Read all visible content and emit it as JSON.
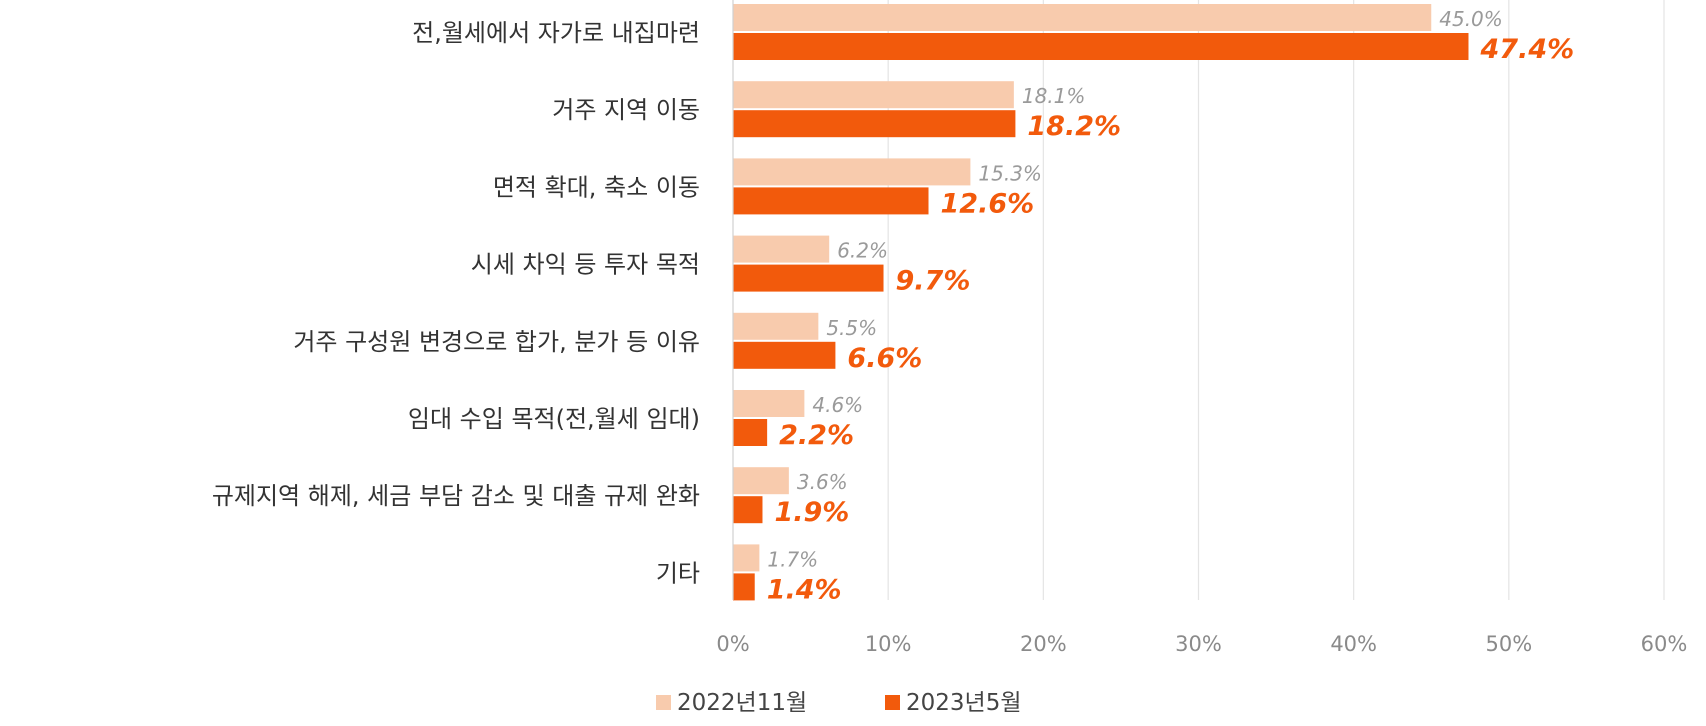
{
  "chart_data": {
    "type": "bar",
    "orientation": "horizontal",
    "categories": [
      "전,월세에서 자가로 내집마련",
      "거주 지역 이동",
      "면적 확대, 축소 이동",
      "시세 차익 등 투자 목적",
      "거주 구성원 변경으로 합가, 분가 등 이유",
      "임대 수입 목적(전,월세 임대)",
      "규제지역 해제, 세금 부담 감소 및 대출 규제 완화",
      "기타"
    ],
    "series": [
      {
        "name": "2022년11월",
        "color": "#f8cbad",
        "values": [
          45.0,
          18.1,
          15.3,
          6.2,
          5.5,
          4.6,
          3.6,
          1.7
        ],
        "labels": [
          "45.0%",
          "18.1%",
          "15.3%",
          "6.2%",
          "5.5%",
          "4.6%",
          "3.6%",
          "1.7%"
        ]
      },
      {
        "name": "2023년5월",
        "color": "#f25a0c",
        "values": [
          47.4,
          18.2,
          12.6,
          9.7,
          6.6,
          2.2,
          1.9,
          1.4
        ],
        "labels": [
          "47.4%",
          "18.2%",
          "12.6%",
          "9.7%",
          "6.6%",
          "2.2%",
          "1.9%",
          "1.4%"
        ]
      }
    ],
    "xlim": [
      0,
      60
    ],
    "x_ticks": [
      "0%",
      "10%",
      "20%",
      "30%",
      "40%",
      "50%",
      "60%"
    ],
    "grid": true,
    "legend_position": "bottom",
    "title": "",
    "xlabel": "",
    "ylabel": ""
  }
}
